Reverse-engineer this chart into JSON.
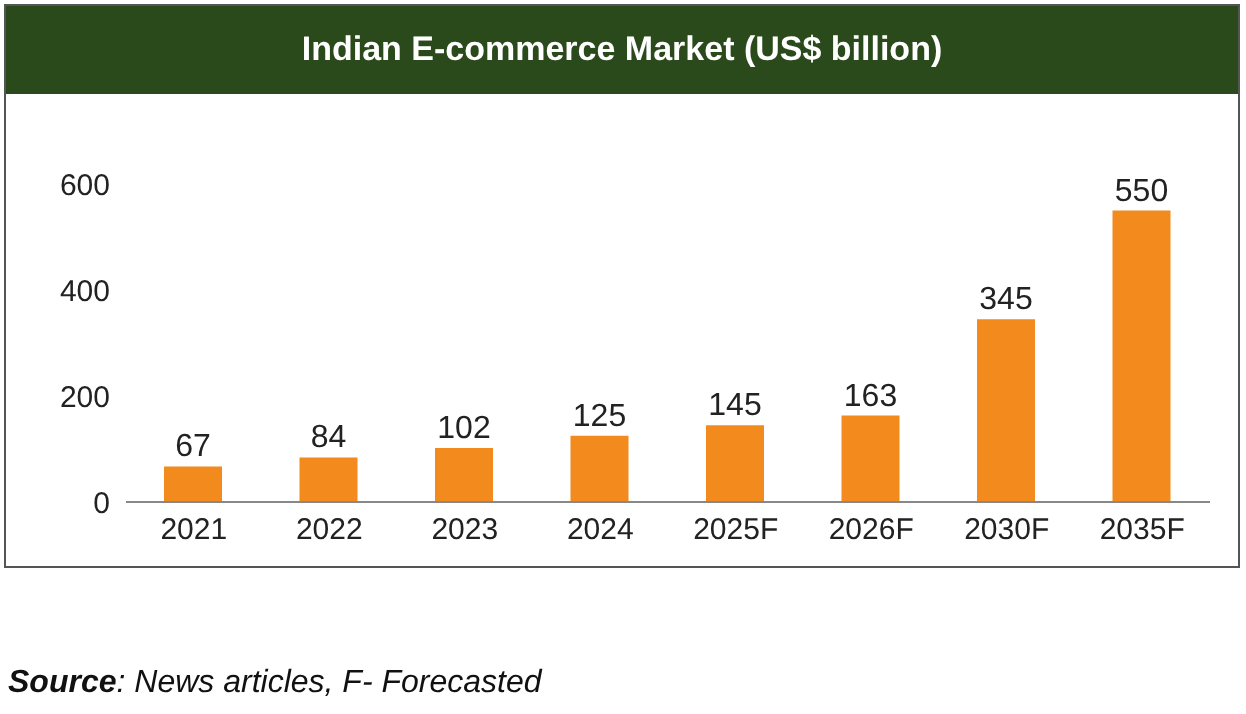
{
  "chart_data": {
    "type": "bar",
    "title": "Indian E-commerce Market (US$ billion)",
    "categories": [
      "2021",
      "2022",
      "2023",
      "2024",
      "2025F",
      "2026F",
      "2030F",
      "2035F"
    ],
    "values": [
      67,
      84,
      102,
      125,
      145,
      163,
      345,
      550
    ],
    "color": "#f28a1e",
    "ylim": [
      0,
      600
    ],
    "yticks": [
      0,
      200,
      400,
      600
    ],
    "grid": false,
    "legend": false,
    "data_labels": true,
    "annotations": [
      "Source: News articles, F- Forecasted"
    ]
  }
}
